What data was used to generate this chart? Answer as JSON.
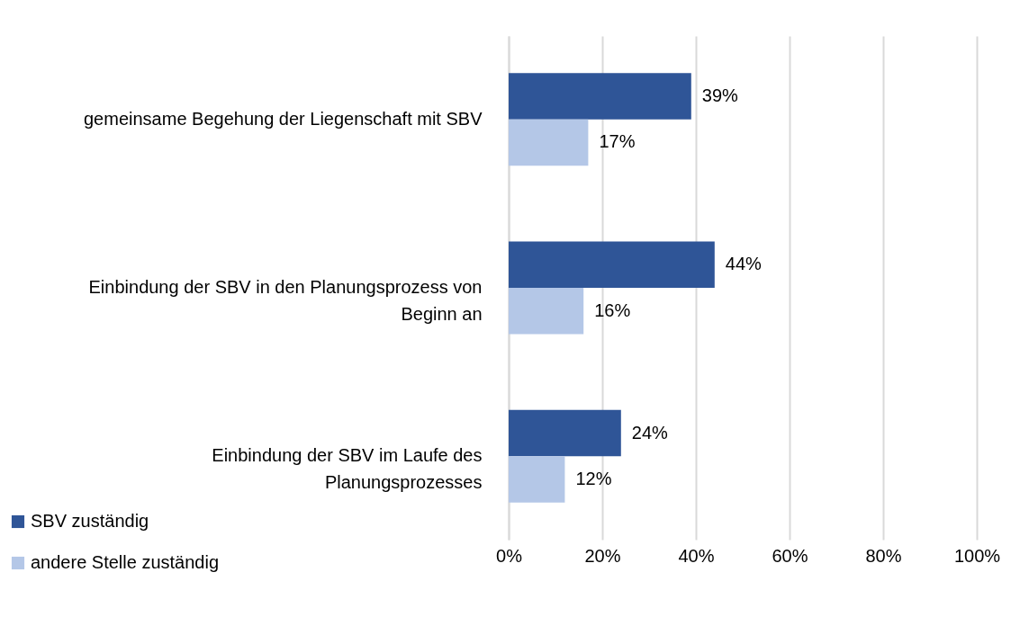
{
  "chart_data": {
    "type": "bar",
    "orientation": "horizontal",
    "categories": [
      "gemeinsame Begehung der Liegenschaft mit SBV",
      "Einbindung der SBV in den Planungsprozess von Beginn an",
      "Einbindung der SBV im Laufe des Planungsprozesses"
    ],
    "series": [
      {
        "name": "SBV zuständig",
        "color": "#2f5597",
        "values": [
          39,
          44,
          24
        ],
        "value_labels": [
          "39%",
          "44%",
          "24%"
        ]
      },
      {
        "name": "andere Stelle zuständig",
        "color": "#b4c7e7",
        "values": [
          17,
          16,
          12
        ],
        "value_labels": [
          "17%",
          "16%",
          "12%"
        ]
      }
    ],
    "xlim": [
      0,
      100
    ],
    "xticks": [
      {
        "value": 0,
        "label": "0%"
      },
      {
        "value": 20,
        "label": "20%"
      },
      {
        "value": 40,
        "label": "40%"
      },
      {
        "value": 60,
        "label": "60%"
      },
      {
        "value": 80,
        "label": "80%"
      },
      {
        "value": 100,
        "label": "100%"
      }
    ],
    "grid": "x",
    "legend": "bottom left"
  }
}
